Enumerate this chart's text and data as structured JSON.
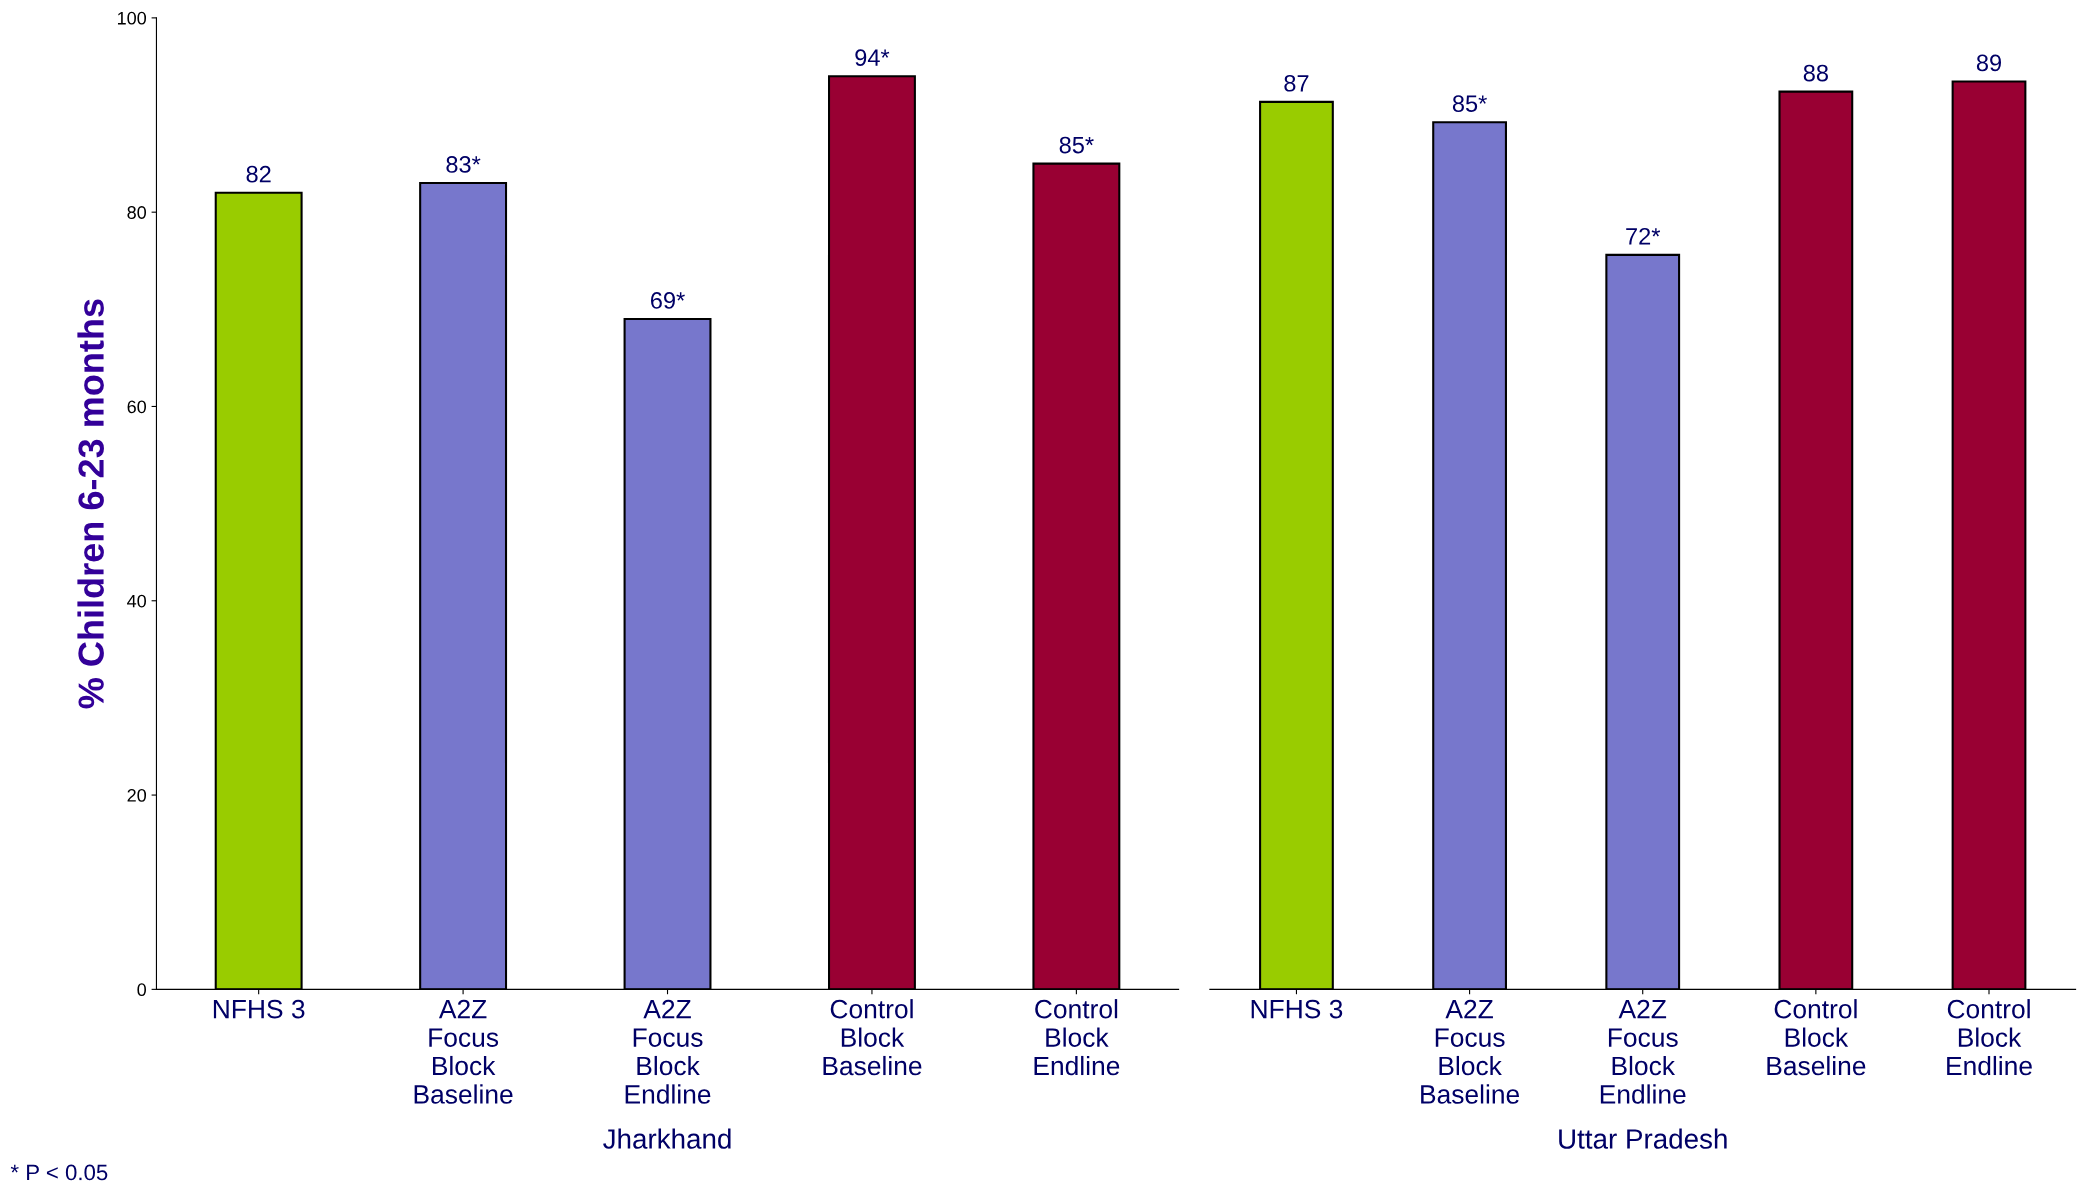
{
  "chart_data": [
    {
      "type": "bar",
      "xlabel": "Jharkhand",
      "ylabel": "% Children 6-23 months",
      "categories": [
        "NFHS 3",
        "A2Z Focus Block Baseline",
        "A2Z Focus Block Endline",
        "Control Block Baseline",
        "Control Block Endline"
      ],
      "values": [
        82,
        83,
        69,
        94,
        85
      ],
      "value_labels": [
        "82",
        "83*",
        "69*",
        "94*",
        "85*"
      ],
      "colors": [
        "#99cc00",
        "#7777cc",
        "#7777cc",
        "#990033",
        "#990033"
      ],
      "ylim": [
        0,
        100
      ],
      "yticks": [
        0,
        20,
        40,
        60,
        80,
        100
      ],
      "grid": false,
      "annotations": [
        "* P < 0.05"
      ]
    },
    {
      "type": "bar",
      "xlabel": "Uttar Pradesh",
      "categories": [
        "NFHS 3",
        "A2Z Focus Block Baseline",
        "A2Z Focus Block Endline",
        "Control Block Baseline",
        "Control Block Endline"
      ],
      "values": [
        87,
        85,
        72,
        88,
        89
      ],
      "value_labels": [
        "87",
        "85*",
        "72*",
        "88",
        "89"
      ],
      "colors": [
        "#99cc00",
        "#7777cc",
        "#7777cc",
        "#990033",
        "#990033"
      ],
      "tick_labels": "x",
      "grid": false
    }
  ]
}
